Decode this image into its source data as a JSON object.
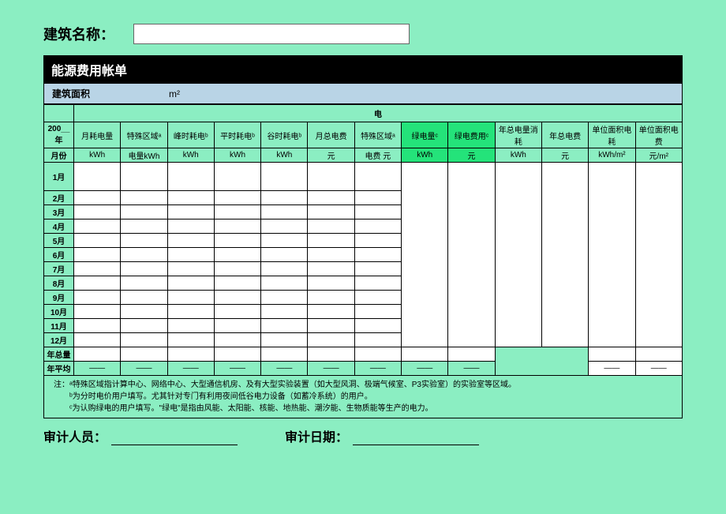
{
  "header": {
    "building_name_label": "建筑名称："
  },
  "section_title": "能源费用帐单",
  "area": {
    "label": "建筑面积",
    "unit": "m²"
  },
  "table": {
    "category_header": "电",
    "year_label_top": "200__年",
    "year_label_bottom": "月份",
    "columns": [
      {
        "h1": "月耗电量",
        "h2": "kWh",
        "green": false
      },
      {
        "h1": "特殊区域ᵃ",
        "h2": "电量kWh",
        "green": false
      },
      {
        "h1": "峰时耗电ᵇ",
        "h2": "kWh",
        "green": false
      },
      {
        "h1": "平时耗电ᵇ",
        "h2": "kWh",
        "green": false
      },
      {
        "h1": "谷时耗电ᵇ",
        "h2": "kWh",
        "green": false
      },
      {
        "h1": "月总电费",
        "h2": "元",
        "green": false
      },
      {
        "h1": "特殊区域ᵃ",
        "h2": "电费 元",
        "green": false
      },
      {
        "h1": "绿电量ᶜ",
        "h2": "kWh",
        "green": true
      },
      {
        "h1": "绿电费用ᶜ",
        "h2": "元",
        "green": true
      },
      {
        "h1": "年总电量消耗",
        "h2": "kWh",
        "green": false
      },
      {
        "h1": "年总电费",
        "h2": "元",
        "green": false
      },
      {
        "h1": "单位面积电耗",
        "h2": "kWh/m²",
        "green": false
      },
      {
        "h1": "单位面积电费",
        "h2": "元/m²",
        "green": false
      }
    ],
    "months": [
      "1月",
      "2月",
      "3月",
      "4月",
      "5月",
      "6月",
      "7月",
      "8月",
      "9月",
      "10月",
      "11月",
      "12月"
    ],
    "total_row_label": "年总量",
    "avg_row_label": "年平均",
    "avg_dash": "——",
    "big_white_spans": [
      7,
      8,
      9,
      10,
      11,
      12
    ],
    "blank_span_cols": [
      9,
      10
    ],
    "month_white_cols": [
      0,
      1,
      2,
      3,
      4,
      5,
      6
    ],
    "month_white_cols_tail": [
      11,
      12
    ],
    "total_white_cols": [
      0,
      1,
      2,
      3,
      4,
      5,
      6,
      7,
      8,
      9,
      10,
      11,
      12
    ],
    "avg_dash_cols": [
      0,
      1,
      2,
      3,
      4,
      5,
      6
    ],
    "avg_white_cols": [
      11,
      12
    ]
  },
  "notes": {
    "prefix": "注：",
    "lines": [
      "ᵃ特殊区域指计算中心、网络中心、大型通信机房、及有大型实验装置（如大型风洞、极端气候室、P3实验室）的实验室等区域。",
      "ᵇ为分时电价用户填写。尤其针对专门有利用夜间低谷电力设备（如蓄冷系统）的用户。",
      "ᶜ为认购绿电的用户填写。\"绿电\"是指由风能、太阳能、核能、地热能、潮汐能、生物质能等生产的电力。"
    ]
  },
  "footer": {
    "auditor_label": "审计人员：",
    "date_label": "审计日期："
  },
  "style": {
    "page_bg": "#8beec2",
    "green_cell": "#24e37a",
    "area_bg": "#b9d4e6",
    "section_bg": "#000000",
    "section_fg": "#ffffff"
  }
}
